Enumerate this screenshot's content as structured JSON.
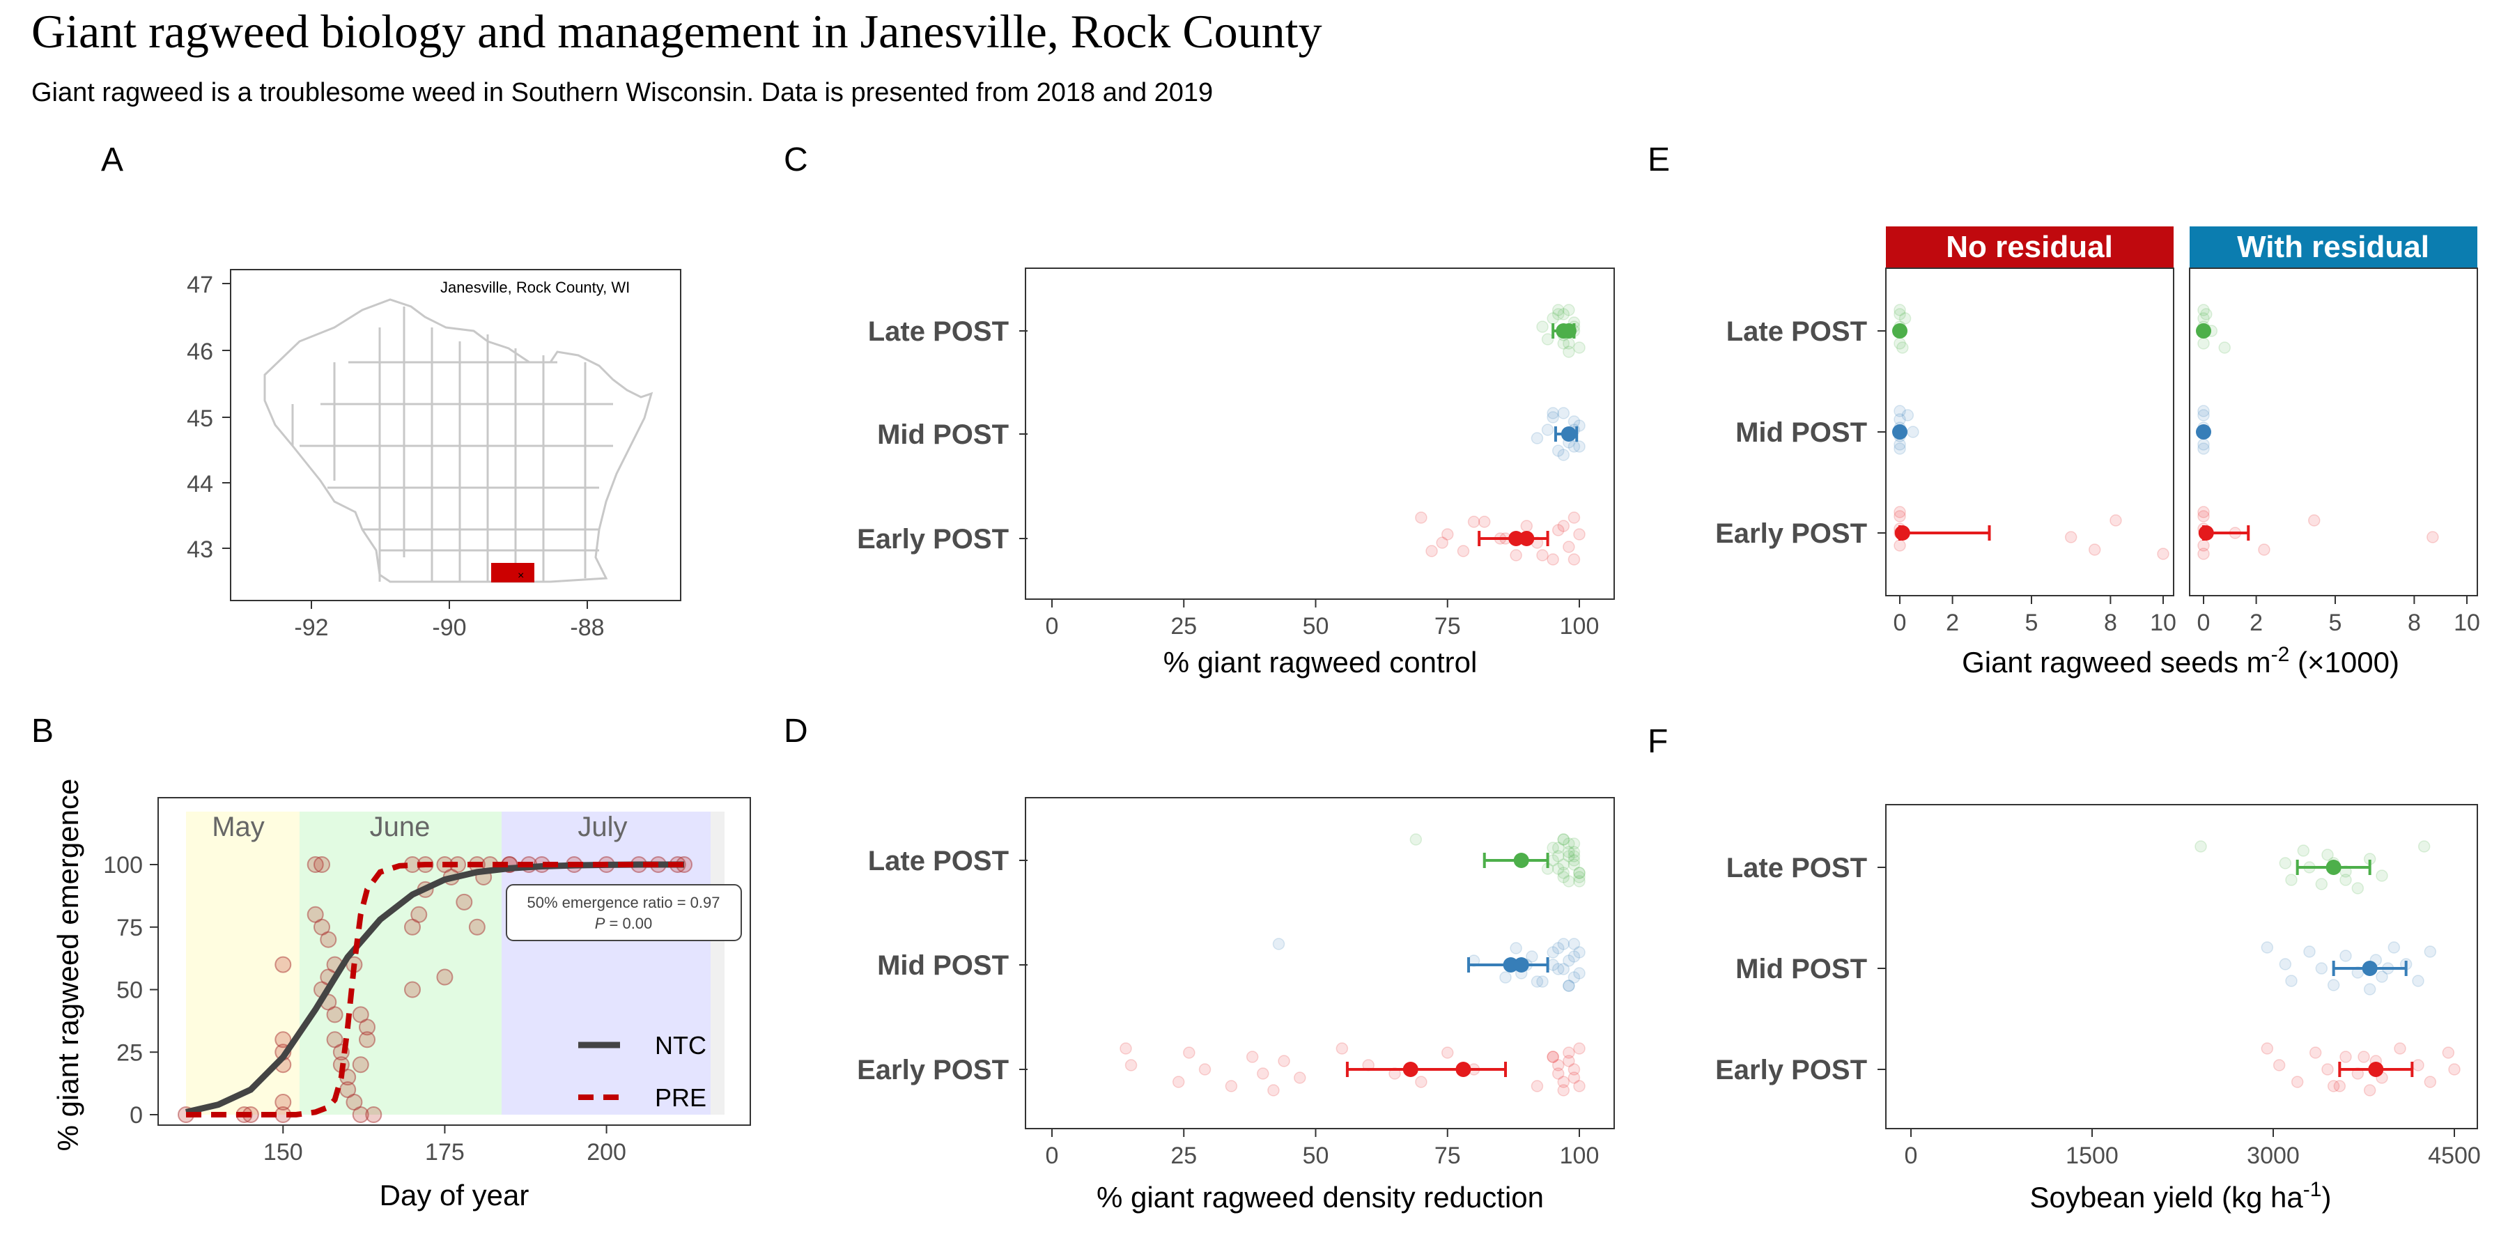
{
  "title": "Giant ragweed biology and management in Janesville, Rock County",
  "subtitle": "Giant ragweed is a troublesome weed in Southern Wisconsin. Data is presented from 2018 and 2019",
  "colors": {
    "early": "#e41a1c",
    "mid": "#377eb8",
    "late": "#4daf4a",
    "no_residual": "#c0090e",
    "with_residual": "#0b7db0",
    "ntc": "#444444",
    "pre": "#c00000",
    "may_band": "#fffde0",
    "june_band": "#e2fbe2",
    "july_band": "#e4e4ff",
    "county_fill": "#cc0000"
  },
  "panels": {
    "A": {
      "label": "A",
      "map_title": "Janesville, Rock County, WI",
      "x_ticks": [
        "-92",
        "-90",
        "-88"
      ],
      "y_ticks": [
        "47",
        "46",
        "45",
        "44",
        "43"
      ]
    },
    "B": {
      "label": "B",
      "xlabel": "Day of year",
      "ylabel": "% giant ragweed emergence",
      "x_ticks": [
        "150",
        "175",
        "200"
      ],
      "y_ticks": [
        "0",
        "25",
        "50",
        "75",
        "100"
      ],
      "months": [
        "May",
        "June",
        "July"
      ],
      "annotation_line1": "50% emergence ratio = 0.97",
      "annotation_line2_p": "P",
      "annotation_line2_rest": " = 0.00",
      "legend": [
        "NTC",
        "PRE"
      ]
    },
    "C": {
      "label": "C",
      "xlabel": "% giant ragweed control"
    },
    "D": {
      "label": "D",
      "xlabel": "% giant ragweed density reduction"
    },
    "E": {
      "label": "E",
      "xlabel_main": "Giant ragweed seeds m",
      "xlabel_sup": "-2",
      "xlabel_tail": " (×1000)",
      "facets": [
        "No residual",
        "With residual"
      ],
      "x_ticks": [
        "0",
        "2",
        "5",
        "8",
        "10"
      ]
    },
    "F": {
      "label": "F",
      "xlabel_main": "Soybean yield (kg ha",
      "xlabel_sup": "-1",
      "xlabel_tail": ")",
      "x_ticks": [
        "0",
        "1500",
        "3000",
        "4500"
      ]
    }
  },
  "timing_labels": [
    "Late POST",
    "Mid POST",
    "Early POST"
  ],
  "pct_ticks": [
    "0",
    "25",
    "50",
    "75",
    "100"
  ],
  "chart_data": [
    {
      "panel": "B",
      "type": "line",
      "xlabel": "Day of year",
      "ylabel": "% giant ragweed emergence",
      "xlim": [
        132,
        216
      ],
      "ylim": [
        -3,
        118
      ],
      "series": [
        {
          "name": "NTC",
          "x": [
            135,
            140,
            145,
            150,
            155,
            160,
            165,
            170,
            175,
            180,
            185,
            190,
            195,
            200,
            205,
            210,
            212
          ],
          "y": [
            1,
            4,
            10,
            23,
            42,
            63,
            78,
            88,
            94,
            97,
            98.5,
            99.3,
            99.7,
            99.9,
            100,
            100,
            100
          ]
        },
        {
          "name": "PRE",
          "x": [
            135,
            145,
            152,
            155,
            157,
            158,
            159,
            160,
            161,
            162,
            163,
            165,
            168,
            172,
            180,
            200,
            212
          ],
          "y": [
            0,
            0,
            0,
            1,
            3,
            6,
            15,
            35,
            60,
            80,
            90,
            97,
            99.5,
            100,
            100,
            100,
            100
          ]
        }
      ],
      "points": [
        {
          "x": 135,
          "y": 0
        },
        {
          "x": 144,
          "y": 0
        },
        {
          "x": 145,
          "y": 0
        },
        {
          "x": 150,
          "y": 0
        },
        {
          "x": 150,
          "y": 5
        },
        {
          "x": 150,
          "y": 20
        },
        {
          "x": 150,
          "y": 25
        },
        {
          "x": 150,
          "y": 30
        },
        {
          "x": 150,
          "y": 60
        },
        {
          "x": 155,
          "y": 100
        },
        {
          "x": 156,
          "y": 100
        },
        {
          "x": 155,
          "y": 80
        },
        {
          "x": 156,
          "y": 75
        },
        {
          "x": 157,
          "y": 70
        },
        {
          "x": 156,
          "y": 50
        },
        {
          "x": 157,
          "y": 55
        },
        {
          "x": 158,
          "y": 60
        },
        {
          "x": 157,
          "y": 45
        },
        {
          "x": 158,
          "y": 40
        },
        {
          "x": 158,
          "y": 30
        },
        {
          "x": 159,
          "y": 25
        },
        {
          "x": 159,
          "y": 20
        },
        {
          "x": 160,
          "y": 15
        },
        {
          "x": 160,
          "y": 10
        },
        {
          "x": 161,
          "y": 5
        },
        {
          "x": 162,
          "y": 0
        },
        {
          "x": 162,
          "y": 40
        },
        {
          "x": 163,
          "y": 35
        },
        {
          "x": 163,
          "y": 30
        },
        {
          "x": 162,
          "y": 20
        },
        {
          "x": 161,
          "y": 60
        },
        {
          "x": 164,
          "y": 0
        },
        {
          "x": 170,
          "y": 100
        },
        {
          "x": 172,
          "y": 100
        },
        {
          "x": 175,
          "y": 100
        },
        {
          "x": 177,
          "y": 100
        },
        {
          "x": 180,
          "y": 100
        },
        {
          "x": 182,
          "y": 100
        },
        {
          "x": 185,
          "y": 100
        },
        {
          "x": 188,
          "y": 100
        },
        {
          "x": 190,
          "y": 100
        },
        {
          "x": 171,
          "y": 80
        },
        {
          "x": 170,
          "y": 75
        },
        {
          "x": 170,
          "y": 50
        },
        {
          "x": 175,
          "y": 55
        },
        {
          "x": 172,
          "y": 90
        },
        {
          "x": 176,
          "y": 95
        },
        {
          "x": 178,
          "y": 85
        },
        {
          "x": 180,
          "y": 75
        },
        {
          "x": 181,
          "y": 95
        },
        {
          "x": 185,
          "y": 100
        },
        {
          "x": 195,
          "y": 100
        },
        {
          "x": 200,
          "y": 100
        },
        {
          "x": 205,
          "y": 100
        },
        {
          "x": 208,
          "y": 100
        },
        {
          "x": 211,
          "y": 100
        },
        {
          "x": 212,
          "y": 100
        }
      ]
    },
    {
      "panel": "C",
      "type": "scatter",
      "xlabel": "% giant ragweed control",
      "xlim": [
        0,
        100
      ],
      "categories": [
        "Late POST",
        "Mid POST",
        "Early POST"
      ],
      "means": [
        {
          "x": [
            97,
            98
          ],
          "lo": 95,
          "hi": 99
        },
        {
          "x": [
            98
          ],
          "lo": 95.5,
          "hi": 99.5
        },
        {
          "x": [
            88,
            90
          ],
          "lo": 81,
          "hi": 94
        }
      ],
      "raw": [
        [
          98,
          99,
          97,
          96,
          99,
          100,
          95,
          97,
          98,
          99,
          94,
          96,
          93,
          98,
          97
        ],
        [
          97,
          99,
          100,
          95,
          98,
          96,
          99,
          92,
          97,
          100,
          98,
          95,
          94,
          99
        ],
        [
          70,
          75,
          72,
          80,
          85,
          88,
          90,
          92,
          95,
          96,
          98,
          99,
          100,
          78,
          82,
          86,
          93,
          97,
          74,
          99
        ]
      ]
    },
    {
      "panel": "D",
      "type": "scatter",
      "xlabel": "% giant ragweed density reduction",
      "xlim": [
        0,
        100
      ],
      "categories": [
        "Late POST",
        "Mid POST",
        "Early POST"
      ],
      "means": [
        {
          "x": [
            89
          ],
          "lo": 82,
          "hi": 94
        },
        {
          "x": [
            87,
            89
          ],
          "lo": 79,
          "hi": 94
        },
        {
          "x": [
            68,
            78
          ],
          "lo": 56,
          "hi": 86
        }
      ],
      "raw": [
        [
          69,
          96,
          97,
          98,
          99,
          100,
          95,
          97,
          98,
          99,
          96,
          97,
          98,
          100,
          99,
          95,
          97,
          96,
          99,
          100,
          98,
          94,
          97,
          99,
          100
        ],
        [
          43,
          80,
          86,
          88,
          90,
          92,
          95,
          96,
          98,
          99,
          100,
          97,
          98,
          99,
          96,
          95,
          93,
          100,
          97,
          98,
          91,
          89,
          99
        ],
        [
          14,
          15,
          24,
          26,
          29,
          34,
          38,
          40,
          42,
          44,
          47,
          55,
          60,
          70,
          75,
          80,
          92,
          95,
          96,
          97,
          98,
          99,
          100,
          96,
          97,
          98,
          99,
          100,
          95,
          65
        ]
      ]
    },
    {
      "panel": "E",
      "type": "scatter",
      "xlabel": "Giant ragweed seeds m-2 (×1000)",
      "xlim": [
        0,
        10.5
      ],
      "facets": [
        "No residual",
        "With residual"
      ],
      "categories": [
        "Late POST",
        "Mid POST",
        "Early POST"
      ],
      "means": [
        [
          {
            "x": 0,
            "lo": 0,
            "hi": 0
          },
          {
            "x": 0,
            "lo": 0,
            "hi": 0
          },
          {
            "x": 0.1,
            "lo": 0,
            "hi": 3.4
          }
        ],
        [
          {
            "x": 0,
            "lo": 0,
            "hi": 0
          },
          {
            "x": 0,
            "lo": 0,
            "hi": 0
          },
          {
            "x": 0.1,
            "lo": 0,
            "hi": 1.7
          }
        ]
      ],
      "raw": [
        [
          [
            0,
            0,
            0,
            0,
            0,
            0.1,
            0.2
          ],
          [
            0,
            0,
            0,
            0.3,
            0.5,
            0,
            0,
            0
          ],
          [
            0,
            0,
            0,
            0,
            0,
            7.4,
            8.2,
            6.5,
            10
          ]
        ],
        [
          [
            0,
            0,
            0,
            0.1,
            0.3,
            0.8,
            0
          ],
          [
            0,
            0,
            0,
            0,
            0,
            0
          ],
          [
            0,
            0,
            0,
            0,
            1.2,
            2.3,
            4.2,
            8.7,
            0
          ]
        ]
      ]
    },
    {
      "panel": "F",
      "type": "scatter",
      "xlabel": "Soybean yield (kg ha-1)",
      "xlim": [
        -200,
        4700
      ],
      "categories": [
        "Late POST",
        "Mid POST",
        "Early POST"
      ],
      "means": [
        {
          "x": [
            3500
          ],
          "lo": 3200,
          "hi": 3800
        },
        {
          "x": [
            3800
          ],
          "lo": 3500,
          "hi": 4100
        },
        {
          "x": [
            3850
          ],
          "lo": 3550,
          "hi": 4150
        }
      ],
      "raw": [
        [
          2400,
          3100,
          3150,
          3250,
          3300,
          3400,
          3450,
          3600,
          3700,
          3800,
          3900,
          4250,
          3500,
          3600
        ],
        [
          2950,
          3100,
          3150,
          3300,
          3400,
          3500,
          3600,
          3700,
          3800,
          3850,
          3900,
          4000,
          4100,
          4200,
          4300,
          3950
        ],
        [
          2950,
          3050,
          3200,
          3350,
          3450,
          3550,
          3600,
          3700,
          3800,
          3850,
          3900,
          4050,
          4200,
          4300,
          4450,
          4500,
          3500,
          3750
        ]
      ]
    }
  ]
}
